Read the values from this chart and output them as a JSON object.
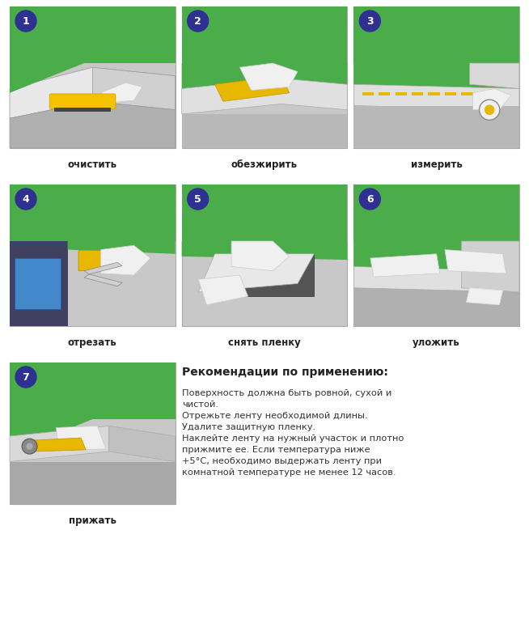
{
  "bg_color": "#ffffff",
  "green_color": "#4aad4a",
  "circle_color": "#2e3191",
  "circle_text_color": "#ffffff",
  "panel_bg": "#d4d4d4",
  "steps": [
    {
      "num": "1",
      "label": "очистить",
      "col": 0,
      "row": 0
    },
    {
      "num": "2",
      "label": "обезжирить",
      "col": 1,
      "row": 0
    },
    {
      "num": "3",
      "label": "измерить",
      "col": 2,
      "row": 0
    },
    {
      "num": "4",
      "label": "отрезать",
      "col": 0,
      "row": 1
    },
    {
      "num": "5",
      "label": "снять пленку",
      "col": 1,
      "row": 1
    },
    {
      "num": "6",
      "label": "уложить",
      "col": 2,
      "row": 1
    },
    {
      "num": "7",
      "label": "прижать",
      "col": 0,
      "row": 2
    }
  ],
  "rec_title": "Рекомендации по применению:",
  "rec_text": "Поверхность должна быть ровной, сухой и\nчистой.\nОтрежьте ленту необходимой длины.\nУдалите защитную пленку.\nНаклейте ленту на нужный участок и плотно\nприжмите ее. Если температура ниже\n+5°С, необходимо выдержать ленту при\nкомнатной температуре не менее 12 часов."
}
